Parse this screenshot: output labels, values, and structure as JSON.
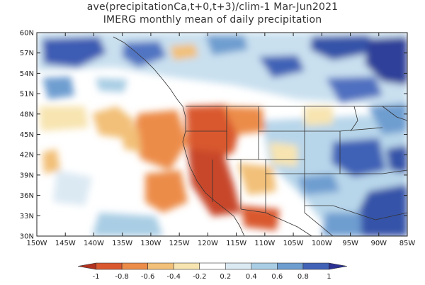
{
  "title_line1": "ave(precipitationCa,t+0,t+3)/clim-1 Mar-Jun2021",
  "title_line2": "IMERG monthly mean of daily precipitation",
  "map": {
    "lon_min": -150,
    "lon_max": -85,
    "lat_min": 30,
    "lat_max": 60,
    "lat_labels": [
      "60N",
      "57N",
      "54N",
      "51N",
      "48N",
      "45N",
      "42N",
      "39N",
      "36N",
      "33N",
      "30N"
    ],
    "lon_labels": [
      "150W",
      "145W",
      "140W",
      "135W",
      "130W",
      "125W",
      "120W",
      "115W",
      "110W",
      "105W",
      "100W",
      "95W",
      "90W",
      "85W"
    ]
  },
  "colorbar": {
    "labels": [
      "-1",
      "-0.8",
      "-0.6",
      "-0.4",
      "-0.2",
      "0.2",
      "0.4",
      "0.6",
      "0.8",
      "1"
    ],
    "colors": [
      "#b2311f",
      "#d9582f",
      "#ec8c49",
      "#f2c078",
      "#f7e4b0",
      "#ffffff",
      "#dbe9f3",
      "#a9cde4",
      "#6e9dd0",
      "#4162b6",
      "#2b3192"
    ]
  }
}
